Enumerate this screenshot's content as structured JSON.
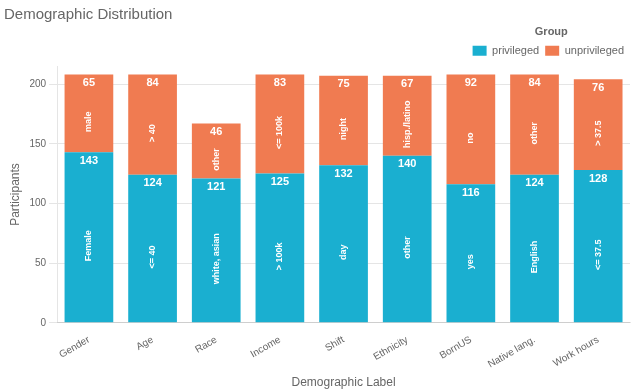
{
  "chart_data": {
    "type": "bar",
    "title": "Demographic Distribution",
    "xlabel": "Demographic Label",
    "ylabel": "Participants",
    "categories": [
      "Gender",
      "Age",
      "Race",
      "Income",
      "Shift",
      "Ethnicity",
      "BornUS",
      "Native lang.",
      "Work hours"
    ],
    "series": [
      {
        "name": "privileged",
        "color": "#1aafd0",
        "values": [
          143,
          124,
          121,
          125,
          132,
          140,
          116,
          124,
          128
        ],
        "labels": [
          "Female",
          "<= 40",
          "white, asian",
          "> 100k",
          "day",
          "other",
          "yes",
          "English",
          "<= 37.5"
        ]
      },
      {
        "name": "unprivileged",
        "color": "#f07b51",
        "values": [
          65,
          84,
          46,
          83,
          75,
          67,
          92,
          84,
          76
        ],
        "labels": [
          "male",
          "> 40",
          "other",
          "<= 100k",
          "night",
          "hisp./latino",
          "no",
          "other",
          "> 37.5"
        ]
      }
    ],
    "stacked": true,
    "ylim": [
      0,
      215
    ],
    "yticks": [
      0,
      50,
      100,
      150,
      200
    ],
    "grid": true,
    "legend": "upper right",
    "legend_title": "Group",
    "data_labels": true
  }
}
